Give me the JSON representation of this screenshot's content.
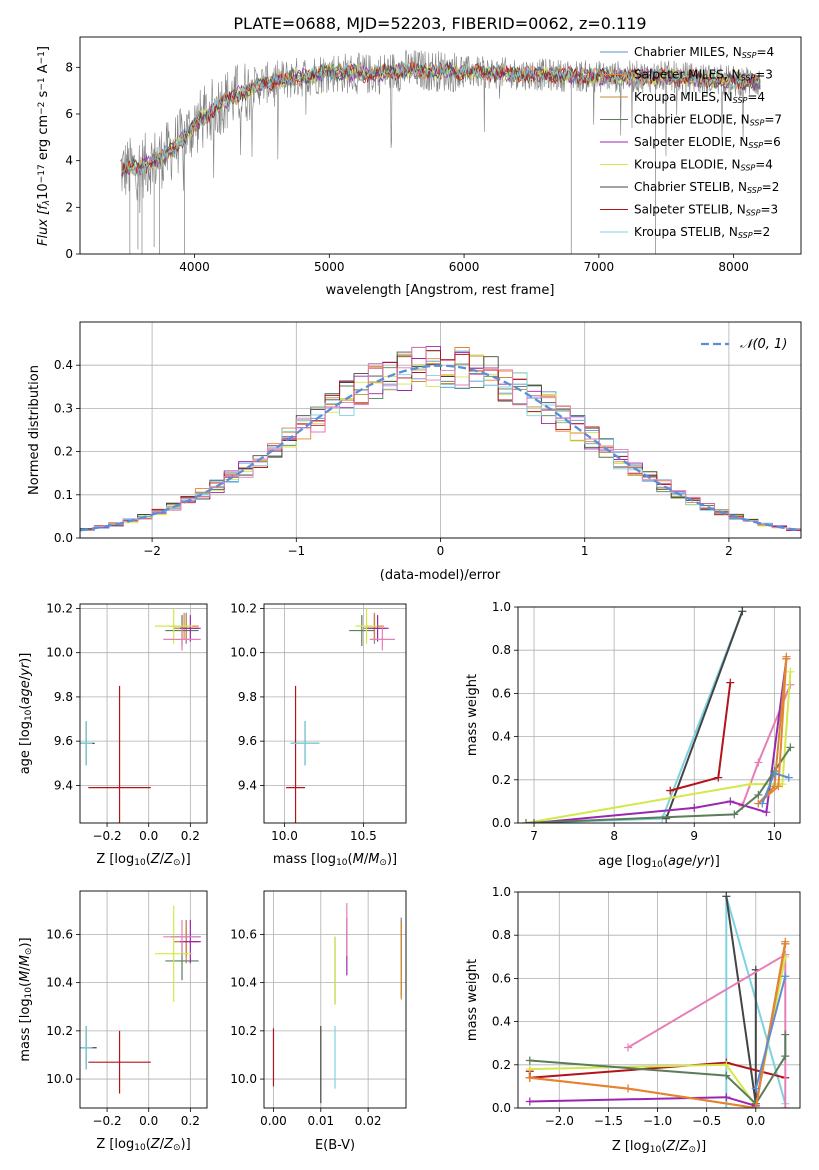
{
  "title": "PLATE=0688, MJD=52203, FIBERID=0062, z=0.119",
  "colors": {
    "chabrier_miles": "#5b8ed6",
    "salpeter_miles": "#e8832e",
    "kroupa_miles": "#c98a3c",
    "chabrier_elodie": "#5a7d5a",
    "salpeter_elodie": "#9b27b0",
    "kroupa_elodie": "#d4e84a",
    "chabrier_stelib": "#444444",
    "salpeter_stelib": "#b3141c",
    "kroupa_stelib": "#7dd3e0",
    "pink": "#e87eb6",
    "spectrum_gray": "#808080"
  },
  "chart_data": [
    {
      "id": "spectrum",
      "type": "line",
      "title": "PLATE=0688, MJD=52203, FIBERID=0062, z=0.119",
      "xlabel": "wavelength [Angstrom, rest frame]",
      "ylabel_parts": [
        "Flux [f",
        "λ",
        "10",
        "−17",
        " erg cm",
        "−2",
        " s",
        "−1",
        " A",
        "−1",
        "]"
      ],
      "xlim": [
        3150,
        8500
      ],
      "ylim": [
        0,
        9.3
      ],
      "xticks": [
        4000,
        5000,
        6000,
        7000,
        8000
      ],
      "yticks": [
        0,
        2,
        4,
        6,
        8
      ],
      "grid": false,
      "legend_position": "right",
      "legend": [
        {
          "label": "Chabrier MILES, N",
          "sub": "SSP",
          "eq": "=4",
          "color": "#5b8ed6"
        },
        {
          "label": "Salpeter MILES, N",
          "sub": "SSP",
          "eq": "=3",
          "color": "#e8832e"
        },
        {
          "label": "Kroupa MILES, N",
          "sub": "SSP",
          "eq": "=4",
          "color": "#c98a3c"
        },
        {
          "label": "Chabrier ELODIE, N",
          "sub": "SSP",
          "eq": "=7",
          "color": "#5a7d5a"
        },
        {
          "label": "Salpeter ELODIE, N",
          "sub": "SSP",
          "eq": "=6",
          "color": "#9b27b0"
        },
        {
          "label": "Kroupa ELODIE, N",
          "sub": "SSP",
          "eq": "=4",
          "color": "#d4e84a"
        },
        {
          "label": "Chabrier STELIB, N",
          "sub": "SSP",
          "eq": "=2",
          "color": "#444444"
        },
        {
          "label": "Salpeter STELIB, N",
          "sub": "SSP",
          "eq": "=3",
          "color": "#b3141c"
        },
        {
          "label": "Kroupa STELIB, N",
          "sub": "SSP",
          "eq": "=2",
          "color": "#7dd3e0"
        }
      ],
      "continuum_x": [
        3450,
        3600,
        3800,
        4000,
        4200,
        4500,
        4800,
        5000,
        5300,
        5600,
        6000,
        6500,
        7000,
        7500,
        8000,
        8200
      ],
      "continuum_y": [
        3.6,
        3.7,
        4.3,
        5.5,
        6.5,
        7.3,
        7.6,
        7.8,
        7.7,
        7.9,
        7.8,
        7.7,
        7.6,
        7.6,
        7.4,
        7.4
      ]
    },
    {
      "id": "residuals",
      "type": "histogram",
      "xlabel": "(data-model)/error",
      "ylabel": "Normed distribution",
      "xlim": [
        -2.5,
        2.5
      ],
      "ylim": [
        0,
        0.5
      ],
      "xticks": [
        -2,
        -1,
        0,
        1,
        2
      ],
      "yticks": [
        0.0,
        0.1,
        0.2,
        0.3,
        0.4
      ],
      "grid": true,
      "legend_position": "top-right",
      "legend": [
        "𝒩(0, 1)"
      ],
      "reference_curve": "normal(0,1)"
    },
    {
      "id": "age_vs_Z",
      "type": "scatter",
      "xlabel": "Z [log10(Z/Z☉)]",
      "ylabel": "age  [log10(age/yr)]",
      "xlim": [
        -0.33,
        0.28
      ],
      "ylim": [
        9.23,
        10.22
      ],
      "xticks": [
        -0.2,
        0.0,
        0.2
      ],
      "yticks": [
        9.4,
        9.6,
        9.8,
        10.0,
        10.2
      ],
      "grid": true,
      "points": [
        {
          "x": 0.18,
          "y": 10.11,
          "xerr": 0.06,
          "yerr": 0.07,
          "color": "#5b8ed6"
        },
        {
          "x": 0.17,
          "y": 10.12,
          "xerr": 0.07,
          "yerr": 0.06,
          "color": "#e8832e"
        },
        {
          "x": 0.18,
          "y": 10.11,
          "xerr": 0.06,
          "yerr": 0.06,
          "color": "#c98a3c"
        },
        {
          "x": 0.16,
          "y": 10.1,
          "xerr": 0.08,
          "yerr": 0.07,
          "color": "#5a7d5a"
        },
        {
          "x": 0.2,
          "y": 10.11,
          "xerr": 0.05,
          "yerr": 0.06,
          "color": "#9b27b0"
        },
        {
          "x": 0.12,
          "y": 10.12,
          "xerr": 0.09,
          "yerr": 0.08,
          "color": "#d4e84a"
        },
        {
          "x": -0.3,
          "y": 9.59,
          "xerr": 0.04,
          "yerr": 0.1,
          "color": "#444444"
        },
        {
          "x": -0.14,
          "y": 9.39,
          "xerr": 0.15,
          "yerr": 0.46,
          "color": "#b3141c"
        },
        {
          "x": -0.3,
          "y": 9.59,
          "xerr": 0.03,
          "yerr": 0.1,
          "color": "#7dd3e0"
        },
        {
          "x": 0.16,
          "y": 10.06,
          "xerr": 0.09,
          "yerr": 0.05,
          "color": "#e87eb6"
        }
      ]
    },
    {
      "id": "age_vs_mass",
      "type": "scatter",
      "xlabel": "mass [log10(M/M☉)]",
      "ylabel": "",
      "xlim": [
        9.87,
        10.77
      ],
      "ylim": [
        9.23,
        10.22
      ],
      "xticks": [
        10.0,
        10.5
      ],
      "yticks": [
        9.4,
        9.6,
        9.8,
        10.0,
        10.2
      ],
      "grid": true,
      "points": [
        {
          "x": 10.57,
          "y": 10.11,
          "xerr": 0.07,
          "yerr": 0.07,
          "color": "#5b8ed6"
        },
        {
          "x": 10.57,
          "y": 10.12,
          "xerr": 0.06,
          "yerr": 0.06,
          "color": "#e8832e"
        },
        {
          "x": 10.57,
          "y": 10.11,
          "xerr": 0.07,
          "yerr": 0.06,
          "color": "#c98a3c"
        },
        {
          "x": 10.49,
          "y": 10.1,
          "xerr": 0.08,
          "yerr": 0.07,
          "color": "#5a7d5a"
        },
        {
          "x": 10.59,
          "y": 10.11,
          "xerr": 0.07,
          "yerr": 0.06,
          "color": "#9b27b0"
        },
        {
          "x": 10.52,
          "y": 10.12,
          "xerr": 0.07,
          "yerr": 0.08,
          "color": "#d4e84a"
        },
        {
          "x": 10.13,
          "y": 9.59,
          "xerr": 0.09,
          "yerr": 0.1,
          "color": "#444444"
        },
        {
          "x": 10.07,
          "y": 9.39,
          "xerr": 0.06,
          "yerr": 0.46,
          "color": "#b3141c"
        },
        {
          "x": 10.13,
          "y": 9.59,
          "xerr": 0.09,
          "yerr": 0.1,
          "color": "#7dd3e0"
        },
        {
          "x": 10.62,
          "y": 10.06,
          "xerr": 0.08,
          "yerr": 0.05,
          "color": "#e87eb6"
        }
      ]
    },
    {
      "id": "weight_vs_age",
      "type": "line",
      "xlabel": "age  [log10(age/yr)]",
      "ylabel": "mass weight",
      "xlim": [
        6.8,
        10.32
      ],
      "ylim": [
        0,
        1.0
      ],
      "xticks": [
        7,
        8,
        9,
        10
      ],
      "yticks": [
        0.0,
        0.2,
        0.4,
        0.6,
        0.8,
        1.0
      ],
      "grid": true,
      "series": [
        {
          "color": "#7dd3e0",
          "x": [
            6.9,
            8.6,
            9.6
          ],
          "y": [
            0.0,
            0.02,
            0.98
          ]
        },
        {
          "color": "#444444",
          "x": [
            8.65,
            9.6
          ],
          "y": [
            0.02,
            0.98
          ]
        },
        {
          "color": "#b3141c",
          "x": [
            8.7,
            9.3,
            9.45
          ],
          "y": [
            0.15,
            0.21,
            0.65
          ]
        },
        {
          "color": "#e87eb6",
          "x": [
            9.6,
            9.8,
            10.2
          ],
          "y": [
            0.08,
            0.28,
            0.64
          ]
        },
        {
          "color": "#d4e84a",
          "x": [
            6.9,
            9.7,
            10.1,
            10.2
          ],
          "y": [
            0.0,
            0.18,
            0.18,
            0.7
          ]
        },
        {
          "color": "#9b27b0",
          "x": [
            7.0,
            9.0,
            9.45,
            9.9,
            10.15
          ],
          "y": [
            0.0,
            0.07,
            0.1,
            0.05,
            0.76
          ]
        },
        {
          "color": "#5a7d5a",
          "x": [
            6.9,
            9.5,
            9.8,
            10.0,
            10.2
          ],
          "y": [
            0.0,
            0.04,
            0.13,
            0.24,
            0.35
          ]
        },
        {
          "color": "#c98a3c",
          "x": [
            9.8,
            10.0,
            10.15
          ],
          "y": [
            0.09,
            0.17,
            0.77
          ]
        },
        {
          "color": "#e8832e",
          "x": [
            9.8,
            10.05,
            10.15
          ],
          "y": [
            0.09,
            0.17,
            0.76
          ]
        },
        {
          "color": "#5b8ed6",
          "x": [
            9.85,
            10.0,
            10.18
          ],
          "y": [
            0.09,
            0.23,
            0.21
          ]
        }
      ]
    },
    {
      "id": "mass_vs_Z",
      "type": "scatter",
      "xlabel": "Z [log10(Z/Z☉)]",
      "ylabel": "mass [log10(M/M☉)]",
      "xlim": [
        -0.33,
        0.28
      ],
      "ylim": [
        9.88,
        10.78
      ],
      "xticks": [
        -0.2,
        0.0,
        0.2
      ],
      "yticks": [
        10.0,
        10.2,
        10.4,
        10.6
      ],
      "grid": true,
      "points": [
        {
          "x": 0.18,
          "y": 10.59,
          "xerr": 0.07,
          "yerr": 0.07,
          "color": "#5b8ed6"
        },
        {
          "x": 0.18,
          "y": 10.57,
          "xerr": 0.06,
          "yerr": 0.06,
          "color": "#e8832e"
        },
        {
          "x": 0.18,
          "y": 10.57,
          "xerr": 0.06,
          "yerr": 0.09,
          "color": "#c98a3c"
        },
        {
          "x": 0.16,
          "y": 10.49,
          "xerr": 0.08,
          "yerr": 0.08,
          "color": "#5a7d5a"
        },
        {
          "x": 0.2,
          "y": 10.57,
          "xerr": 0.05,
          "yerr": 0.09,
          "color": "#9b27b0"
        },
        {
          "x": 0.12,
          "y": 10.52,
          "xerr": 0.09,
          "yerr": 0.2,
          "color": "#d4e84a"
        },
        {
          "x": -0.3,
          "y": 10.13,
          "xerr": 0.05,
          "yerr": 0.09,
          "color": "#444444"
        },
        {
          "x": -0.14,
          "y": 10.07,
          "xerr": 0.15,
          "yerr": 0.13,
          "color": "#b3141c"
        },
        {
          "x": -0.3,
          "y": 10.13,
          "xerr": 0.03,
          "yerr": 0.09,
          "color": "#7dd3e0"
        },
        {
          "x": 0.16,
          "y": 10.59,
          "xerr": 0.09,
          "yerr": 0.07,
          "color": "#e87eb6"
        }
      ]
    },
    {
      "id": "mass_vs_EBV",
      "type": "scatter",
      "xlabel": "E(B-V)",
      "ylabel": "",
      "xlim": [
        -0.002,
        0.028
      ],
      "ylim": [
        9.88,
        10.78
      ],
      "xticks": [
        0.0,
        0.01,
        0.02
      ],
      "yticks": [
        10.0,
        10.2,
        10.4,
        10.6
      ],
      "grid": true,
      "points": [
        {
          "x": 0.027,
          "y": 10.58,
          "yerr": 0.09,
          "color": "#5b8ed6"
        },
        {
          "x": 0.027,
          "y": 10.49,
          "yerr": 0.16,
          "color": "#e8832e"
        },
        {
          "x": 0.027,
          "y": 10.5,
          "yerr": 0.16,
          "color": "#c98a3c"
        },
        {
          "x": 0.013,
          "y": 10.45,
          "yerr": 0.14,
          "color": "#5a7d5a"
        },
        {
          "x": 0.0155,
          "y": 10.55,
          "yerr": 0.12,
          "color": "#9b27b0"
        },
        {
          "x": 0.013,
          "y": 10.45,
          "yerr": 0.14,
          "color": "#d4e84a"
        },
        {
          "x": 0.01,
          "y": 10.06,
          "yerr": 0.16,
          "color": "#444444"
        },
        {
          "x": 0.0,
          "y": 10.09,
          "yerr": 0.12,
          "color": "#b3141c"
        },
        {
          "x": 0.013,
          "y": 10.09,
          "yerr": 0.13,
          "color": "#7dd3e0"
        },
        {
          "x": 0.0155,
          "y": 10.62,
          "yerr": 0.11,
          "color": "#e87eb6"
        }
      ]
    },
    {
      "id": "weight_vs_Z",
      "type": "line",
      "xlabel": "Z [log10(Z/Z☉)]",
      "ylabel": "mass weight",
      "xlim": [
        -2.42,
        0.45
      ],
      "ylim": [
        0,
        1.0
      ],
      "xticks": [
        -2.0,
        -1.5,
        -1.0,
        -0.5,
        0.0
      ],
      "yticks": [
        0.0,
        0.2,
        0.4,
        0.6,
        0.8,
        1.0
      ],
      "grid": true,
      "series": [
        {
          "color": "#7dd3e0",
          "x": [
            -0.3,
            -0.3,
            0.3
          ],
          "y": [
            0.0,
            0.98,
            0.02
          ]
        },
        {
          "color": "#444444",
          "x": [
            -0.3,
            0.0,
            0.0
          ],
          "y": [
            0.98,
            0.02,
            0.64
          ]
        },
        {
          "color": "#b3141c",
          "x": [
            -2.3,
            -2.3,
            -0.3,
            0.3
          ],
          "y": [
            0.17,
            0.14,
            0.21,
            0.14
          ]
        },
        {
          "color": "#e87eb6",
          "x": [
            -1.3,
            0.3,
            0.3
          ],
          "y": [
            0.28,
            0.71,
            0.0
          ]
        },
        {
          "color": "#d4e84a",
          "x": [
            -2.3,
            -0.3,
            0.0,
            0.3
          ],
          "y": [
            0.18,
            0.2,
            0.01,
            0.7
          ]
        },
        {
          "color": "#9b27b0",
          "x": [
            -2.3,
            -0.3,
            0.0,
            0.3
          ],
          "y": [
            0.03,
            0.05,
            0.01,
            0.76
          ]
        },
        {
          "color": "#5a7d5a",
          "x": [
            -2.3,
            -0.3,
            0.0,
            0.3,
            0.3
          ],
          "y": [
            0.22,
            0.15,
            0.02,
            0.24,
            0.34
          ]
        },
        {
          "color": "#c98a3c",
          "x": [
            -2.3,
            -1.3,
            0.0,
            0.3
          ],
          "y": [
            0.14,
            0.09,
            0.0,
            0.77
          ]
        },
        {
          "color": "#e8832e",
          "x": [
            -2.3,
            -1.3,
            0.0,
            0.3
          ],
          "y": [
            0.14,
            0.09,
            0.0,
            0.76
          ]
        },
        {
          "color": "#5b8ed6",
          "x": [
            0.0,
            0.3
          ],
          "y": [
            0.09,
            0.61
          ]
        }
      ]
    }
  ]
}
